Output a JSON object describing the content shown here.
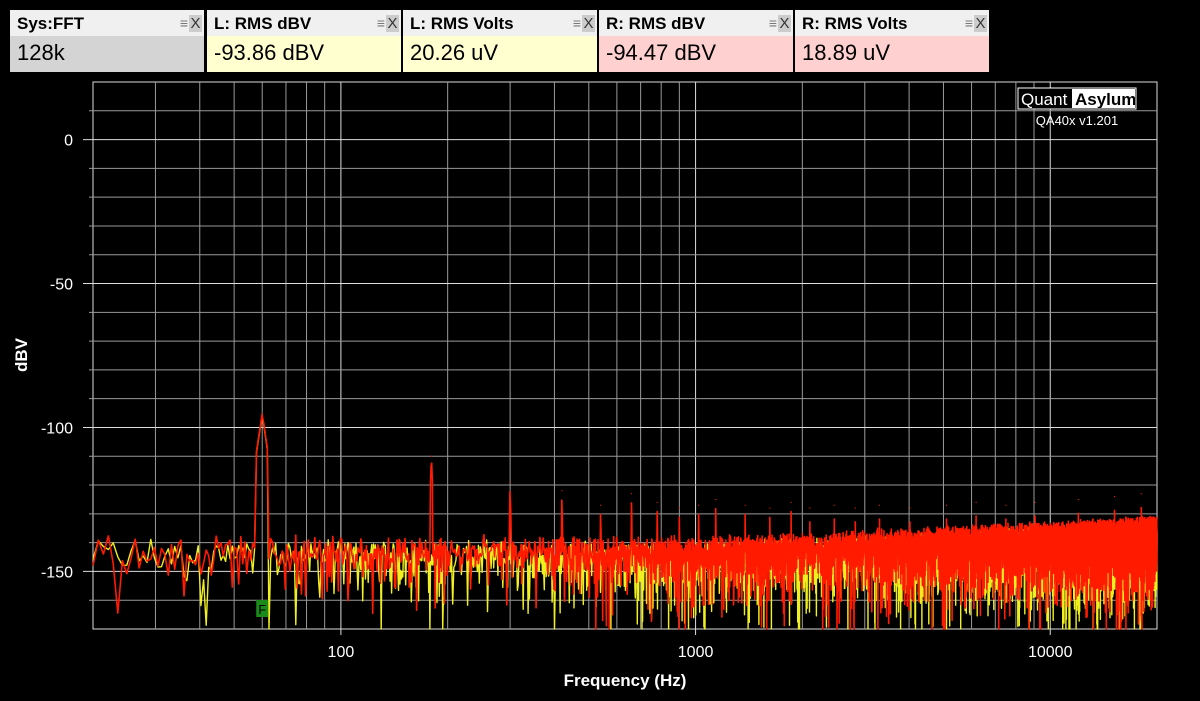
{
  "panels": [
    {
      "label": "Sys:FFT",
      "value": "128k",
      "kind": "sys"
    },
    {
      "label": "L: RMS dBV",
      "value": "-93.86 dBV",
      "kind": "left"
    },
    {
      "label": "L: RMS Volts",
      "value": "20.26 uV",
      "kind": "left"
    },
    {
      "label": "R: RMS dBV",
      "value": "-94.47 dBV",
      "kind": "right"
    },
    {
      "label": "R: RMS Volts",
      "value": "18.89 uV",
      "kind": "right"
    }
  ],
  "panel_icons": {
    "menu": "≡",
    "close": "X"
  },
  "logo": {
    "brand_a": "Quant",
    "brand_b": "Asylum",
    "version": "QA40x v1.201"
  },
  "marker": {
    "label": "F",
    "frequency": 60,
    "color": "#1a8a1a"
  },
  "chart_data": {
    "type": "line",
    "xlabel": "Frequency (Hz)",
    "ylabel": "dBV",
    "xscale": "log",
    "xlim": [
      20,
      20000
    ],
    "ylim": [
      -170,
      20
    ],
    "xticks": [
      {
        "v": 100,
        "label": "100"
      },
      {
        "v": 1000,
        "label": "1000"
      },
      {
        "v": 10000,
        "label": "10000"
      }
    ],
    "yticks": [
      {
        "v": 0,
        "label": "0"
      },
      {
        "v": -50,
        "label": "-50"
      },
      {
        "v": -100,
        "label": "-100"
      },
      {
        "v": -150,
        "label": "-150"
      }
    ],
    "grid": true,
    "series": [
      {
        "name": "Left",
        "color": "#f0f020",
        "noise_floor_db": [
          [
            20,
            -141
          ],
          [
            1000,
            -143
          ],
          [
            10000,
            -138
          ],
          [
            20000,
            -136
          ]
        ],
        "peaks": [
          [
            60,
            -95.5
          ]
        ]
      },
      {
        "name": "Right",
        "color": "#ff1a00",
        "noise_floor_db": [
          [
            20,
            -140
          ],
          [
            1000,
            -141
          ],
          [
            10000,
            -136
          ],
          [
            20000,
            -134
          ]
        ],
        "peaks": [
          [
            60,
            -95
          ],
          [
            180,
            -110
          ],
          [
            300,
            -119
          ],
          [
            420,
            -122
          ],
          [
            540,
            -127
          ],
          [
            660,
            -123
          ],
          [
            780,
            -126
          ],
          [
            900,
            -128
          ],
          [
            1020,
            -127
          ],
          [
            1140,
            -125
          ],
          [
            1380,
            -127
          ],
          [
            1620,
            -128
          ],
          [
            1860,
            -126
          ],
          [
            2100,
            -128
          ],
          [
            2460,
            -127
          ],
          [
            2820,
            -128
          ],
          [
            3300,
            -127
          ],
          [
            4020,
            -128
          ],
          [
            5100,
            -127
          ],
          [
            6180,
            -126
          ],
          [
            7500,
            -127
          ],
          [
            9060,
            -126
          ],
          [
            12000,
            -125
          ],
          [
            15180,
            -124
          ],
          [
            18060,
            -123
          ]
        ]
      }
    ]
  }
}
